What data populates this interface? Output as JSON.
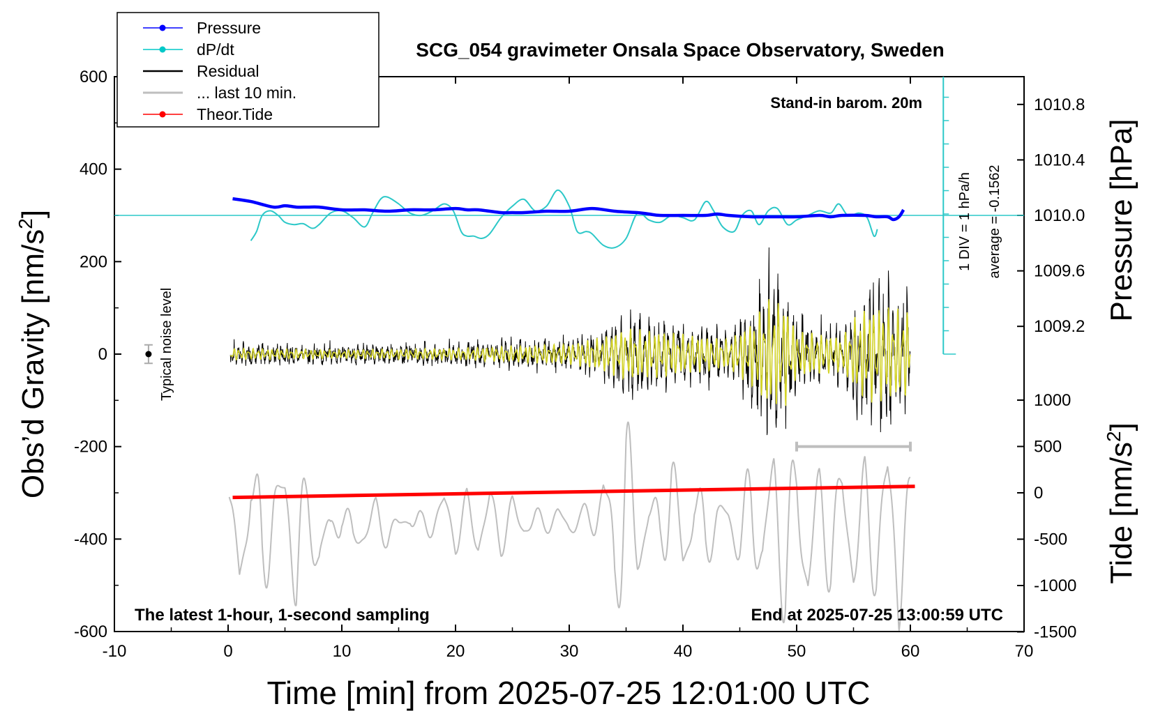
{
  "chart_data": {
    "type": "line",
    "title": "SCG_054 gravimeter Onsala Space Observatory, Sweden",
    "xlabel": "Time [min] from 2025-07-25 12:01:00 UTC",
    "ylabel": "Obs’d Gravity [nm/s²]",
    "ylabel_main": "Obs’d Gravity [nm/s",
    "ylabel_sup": "2",
    "ylabel_tail": "]",
    "pressure_label": "Pressure [hPa]",
    "tide_label_main": "Tide [nm/s",
    "tide_label_sup": "2",
    "tide_label_tail": "]",
    "xlim": [
      -10,
      70
    ],
    "ylim": [
      -600,
      600
    ],
    "x_ticks": [
      "-10",
      "0",
      "10",
      "20",
      "30",
      "40",
      "50",
      "60",
      "70"
    ],
    "y_ticks": [
      "600",
      "400",
      "200",
      "0",
      "-200",
      "-400",
      "-600"
    ],
    "pressure_axis": {
      "range": [
        1009.0,
        1011.0
      ],
      "ticks": [
        "1010.8",
        "1010.4",
        "1010.0",
        "1009.6",
        "1009.2"
      ]
    },
    "tide_axis": {
      "ticks": [
        "1000",
        "500",
        "0",
        "-500",
        "-1000",
        "-1500"
      ]
    },
    "legend": {
      "placement": "top-left",
      "entries": [
        {
          "label": "Pressure",
          "color": "#0000ff",
          "marker": true
        },
        {
          "label": "dP/dt",
          "color": "#00c8c8",
          "marker": true
        },
        {
          "label": "Residual",
          "color": "#000000",
          "marker": false
        },
        {
          "label": "... last 10 min.",
          "color": "#bebebe",
          "marker": false
        },
        {
          "label": "Theor.Tide",
          "color": "#ff0000",
          "marker": true
        }
      ]
    },
    "annotations": {
      "stand_in": "Stand-in barom. 20m",
      "latest": "The latest 1-hour, 1-second sampling",
      "end_at": "End at 2025-07-25 13:00:59 UTC",
      "noise": "Typical noise level",
      "div": "1 DIV = 1 hPa/h",
      "average": "average = -0.1562"
    },
    "series": [
      {
        "name": "Pressure",
        "unit": "hPa",
        "x": [
          0.4,
          2,
          4,
          5,
          6,
          7,
          8,
          10,
          12,
          14,
          16,
          18,
          20,
          21,
          22,
          24,
          25,
          26,
          28,
          30,
          32,
          34,
          36,
          37,
          38,
          40,
          42,
          43,
          44,
          46,
          47,
          48,
          50,
          52,
          53,
          54,
          56,
          57,
          58,
          58.5,
          59,
          59.4
        ],
        "values": [
          1010.12,
          1010.1,
          1010.06,
          1010.07,
          1010.06,
          1010.06,
          1010.06,
          1010.04,
          1010.04,
          1010.03,
          1010.04,
          1010.04,
          1010.05,
          1010.04,
          1010.04,
          1010.02,
          1010.02,
          1010.02,
          1010.03,
          1010.03,
          1010.05,
          1010.03,
          1010.02,
          1010.01,
          1010.0,
          1010.0,
          1010.0,
          1010.01,
          1010.0,
          1009.99,
          1009.99,
          1009.99,
          1009.99,
          1010.0,
          1009.99,
          1010.0,
          1010.0,
          1009.99,
          1009.99,
          1009.97,
          1009.99,
          1010.04
        ]
      },
      {
        "name": "dP/dt",
        "unit": "hPa/h",
        "x": [
          2,
          2.5,
          3,
          3.7,
          4.4,
          5,
          5.8,
          6.6,
          7.4,
          8,
          9,
          10,
          11,
          12,
          12.7,
          13.4,
          14,
          15,
          16,
          17,
          18,
          19,
          19.8,
          20.5,
          21,
          21.6,
          22.3,
          23,
          24,
          25,
          26,
          27,
          28,
          29,
          30,
          30.7,
          31.5,
          32,
          33,
          34,
          35,
          36,
          37,
          38,
          39,
          40,
          41,
          42,
          42.7,
          43.5,
          44.5,
          45.2,
          46,
          46.7,
          47.5,
          48.3,
          49.2,
          50,
          51,
          52,
          53,
          53.7,
          54.5,
          55.5,
          56.2,
          56.8,
          57.1
        ],
        "values": [
          -0.55,
          -0.35,
          0.0,
          0.1,
          0.0,
          -0.15,
          -0.2,
          -0.18,
          -0.28,
          -0.2,
          0.05,
          0.1,
          -0.05,
          -0.25,
          0.05,
          0.35,
          0.4,
          0.25,
          0.05,
          0.0,
          0.1,
          0.25,
          0.1,
          -0.35,
          -0.45,
          -0.45,
          -0.5,
          -0.4,
          -0.05,
          0.2,
          0.35,
          0.1,
          0.2,
          0.55,
          0.2,
          -0.35,
          -0.35,
          -0.4,
          -0.65,
          -0.7,
          -0.5,
          0.05,
          -0.1,
          -0.15,
          0.0,
          -0.05,
          -0.1,
          0.3,
          0.1,
          -0.25,
          -0.35,
          0.0,
          0.1,
          -0.2,
          0.1,
          0.15,
          -0.2,
          -0.1,
          0.0,
          0.1,
          0.05,
          0.25,
          0.0,
          0.05,
          -0.05,
          -0.45,
          -0.3
        ]
      },
      {
        "name": "Theor.Tide",
        "unit": "nm/s²",
        "x": [
          0.4,
          60.4
        ],
        "values": [
          -50,
          70
        ]
      },
      {
        "name": "Residual",
        "unit": "nm/s²",
        "x": [
          0.2,
          10,
          20,
          30,
          33,
          35,
          38,
          42,
          44,
          46,
          47.5,
          49,
          50,
          52,
          54,
          55.5,
          57,
          58.5,
          59.8,
          60
        ],
        "values": [
          0,
          0,
          0,
          0,
          0,
          0,
          0,
          0,
          0,
          0,
          0,
          0,
          0,
          0,
          0,
          0,
          0,
          0,
          0,
          0
        ],
        "envelope": [
          20,
          15,
          20,
          35,
          60,
          90,
          80,
          60,
          50,
          110,
          190,
          180,
          80,
          70,
          60,
          150,
          170,
          160,
          150,
          0
        ]
      },
      {
        "name": "... last 10 min.",
        "unit": "nm/s²",
        "x": [
          0.1,
          1,
          2,
          3,
          4,
          5,
          6,
          7,
          8,
          9,
          10,
          11,
          12,
          13,
          14,
          15,
          16,
          17,
          18,
          19,
          20,
          21,
          22,
          23,
          24,
          25,
          26,
          27,
          28,
          29,
          30,
          31,
          32,
          33,
          34,
          35,
          36,
          37,
          38,
          39,
          40,
          41,
          42,
          43,
          44,
          45,
          46,
          47,
          48,
          49,
          50,
          51,
          52,
          53,
          54,
          55,
          56,
          57,
          58,
          59,
          60
        ],
        "values": [
          -315,
          -470,
          -280,
          -440,
          -330,
          -300,
          -450,
          -330,
          -420,
          -390,
          -340,
          -400,
          -380,
          -350,
          -390,
          -375,
          -345,
          -375,
          -365,
          -325,
          -395,
          -335,
          -400,
          -330,
          -395,
          -345,
          -370,
          -360,
          -365,
          -355,
          -370,
          -355,
          -350,
          -320,
          -450,
          -280,
          -420,
          -350,
          -380,
          -300,
          -430,
          -320,
          -410,
          -350,
          -360,
          -400,
          -330,
          -420,
          -300,
          -450,
          -310,
          -450,
          -330,
          -420,
          -310,
          -440,
          -330,
          -430,
          -300,
          -460,
          -300
        ],
        "envelope": [
          10,
          100,
          80,
          120,
          90,
          30,
          130,
          70,
          120,
          40,
          40,
          40,
          40,
          40,
          30,
          30,
          30,
          30,
          30,
          30,
          40,
          40,
          40,
          50,
          40,
          40,
          30,
          30,
          20,
          30,
          30,
          20,
          40,
          110,
          150,
          170,
          80,
          60,
          70,
          110,
          90,
          80,
          70,
          40,
          50,
          60,
          110,
          100,
          120,
          150,
          110,
          140,
          90,
          100,
          90,
          80,
          100,
          110,
          130,
          150,
          30
        ]
      }
    ],
    "noise_marker": {
      "x": -7,
      "value": 0,
      "error": 20
    },
    "window_bar": {
      "x_start": 50,
      "x_end": 60,
      "value": -200
    }
  }
}
